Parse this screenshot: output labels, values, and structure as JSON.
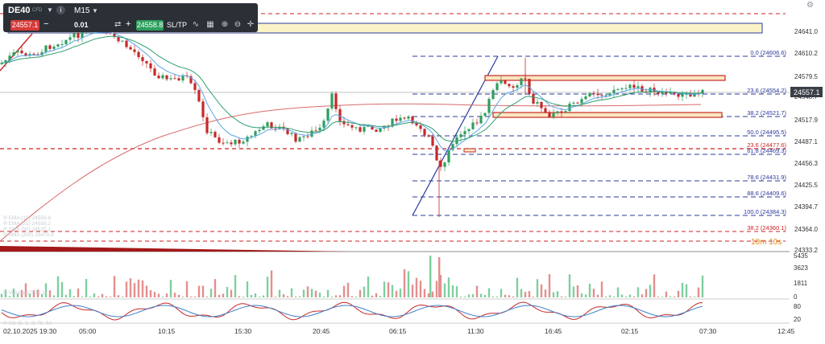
{
  "toolbar": {
    "symbol": "DE40",
    "symbol_sub": "CFD",
    "info_icon": "i",
    "timeframe": "M15",
    "sell_price": "24557.1",
    "minus": "−",
    "quantity": "0.01",
    "plus": "+",
    "buy_price": "24558.8",
    "sltp": "SL/TP",
    "tool_icons": [
      "line-chart-icon",
      "template-icon",
      "zoom-in-icon",
      "zoom-out-icon",
      "crosshair-icon"
    ]
  },
  "price_axis": {
    "labels": [
      "24641.0",
      "24610.2",
      "24579.5",
      "24548.7",
      "24517.9",
      "24487.1",
      "24456.3",
      "24425.5",
      "24394.7",
      "24364.0",
      "24333.2"
    ],
    "current_price": "24557.1"
  },
  "fibonacci": [
    {
      "text": "0.0 (24606.6)",
      "color": "#2b3a9e"
    },
    {
      "text": "23.6 (24554.2)",
      "color": "#2b3a9e"
    },
    {
      "text": "38.2 (24521.7)",
      "color": "#2b3a9e"
    },
    {
      "text": "50.0 (24495.5)",
      "color": "#2b3a9e"
    },
    {
      "text": "23.6 (24477.6)",
      "color": "#cc2222"
    },
    {
      "text": "61.8 (24469.3)",
      "color": "#2b3a9e"
    },
    {
      "text": "78.6 (24431.9)",
      "color": "#2b3a9e"
    },
    {
      "text": "88.6 (24409.6)",
      "color": "#2b3a9e"
    },
    {
      "text": "100.0 (24384.3)",
      "color": "#2b3a9e"
    },
    {
      "text": "38.2 (24360.1)",
      "color": "#cc2222"
    }
  ],
  "timer": "10m 10s",
  "volume_axis": [
    "5435",
    "3623",
    "1811",
    "0"
  ],
  "osc_axis": [
    "80",
    "20"
  ],
  "time_axis": [
    "02.10.2025 19:30",
    "05:00",
    "10:15",
    "15:30",
    "20:45",
    "06:15",
    "11:30",
    "16:45",
    "02:15",
    "07:30",
    "12:45"
  ],
  "legend": [
    "® EMA (10) 24556.8",
    "® EMA (21) 24550.2",
    "® SMA (50) 24515.1",
    "® SMA (200) 24470.9",
    "® Volume (Tick) 17",
    "® SO (5, 3, 3) 76, 53"
  ],
  "colors": {
    "up": "#2e9e5e",
    "down": "#c62828",
    "ema_fast": "#5aa6e8",
    "ema_slow": "#2e9e6e",
    "sma200": "#d96a6a",
    "fib": "#2b3a9e",
    "resistance": "#cc2222"
  }
}
